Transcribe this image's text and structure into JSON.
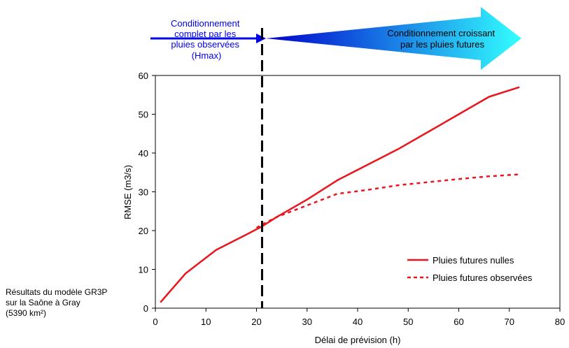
{
  "annotations": {
    "left_arrow_lines": [
      "Conditionnement",
      "complet par les",
      "pluies observées",
      "(Hmax)"
    ],
    "right_arrow_lines": [
      "Conditionnement croissant",
      "par les pluies futures"
    ],
    "left_arrow_color": "#0000ee",
    "right_arrow_gradient": [
      "#0000cc",
      "#33ffff"
    ],
    "note_lines": [
      "Résultats du modèle GR3P",
      "sur la Saône à Gray",
      "(5390 km²)"
    ]
  },
  "chart_data": {
    "type": "line",
    "title": "",
    "xlabel": "Délai de prévision (h)",
    "ylabel": "RMSE (m3/s)",
    "xlim": [
      0,
      80
    ],
    "ylim": [
      0,
      60
    ],
    "xticks": [
      0,
      10,
      20,
      30,
      40,
      50,
      60,
      70,
      80
    ],
    "yticks": [
      0,
      10,
      20,
      30,
      40,
      50,
      60
    ],
    "grid": false,
    "legend_position": "bottom-right",
    "vertical_marker": {
      "x": 21.1,
      "style": "dashed",
      "color": "#000000"
    },
    "series": [
      {
        "name": "Pluies futures nulles",
        "style": "solid",
        "color": "#e8161d",
        "x": [
          1,
          6,
          12,
          18,
          21,
          24,
          30,
          36,
          42,
          48,
          54,
          60,
          66,
          72
        ],
        "y": [
          1.5,
          9,
          15,
          19,
          21,
          23.5,
          28,
          33,
          37,
          41,
          45.5,
          50,
          54.5,
          57
        ]
      },
      {
        "name": "Pluies futures observées",
        "style": "dashed",
        "color": "#e8161d",
        "x": [
          20,
          21,
          24,
          30,
          36,
          42,
          48,
          54,
          60,
          66,
          72
        ],
        "y": [
          20.7,
          21.5,
          23.5,
          26.5,
          29.5,
          30.5,
          31.7,
          32.5,
          33.3,
          34,
          34.5
        ]
      }
    ]
  }
}
